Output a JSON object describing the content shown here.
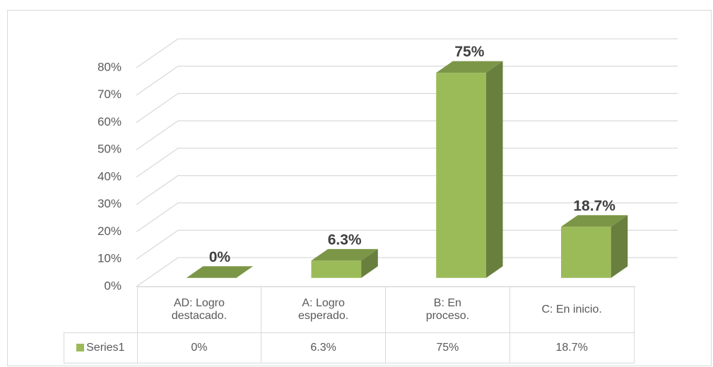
{
  "chart_data": {
    "type": "bar3d",
    "categories": [
      "AD: Logro destacado.",
      "A: Logro esperado.",
      "B: En proceso.",
      "C: En inicio."
    ],
    "series": [
      {
        "name": "Series1",
        "color": "#9bbb59",
        "values": [
          0,
          6.3,
          75,
          18.7
        ],
        "value_labels": [
          "0%",
          "6.3%",
          "75%",
          "18.7%"
        ]
      }
    ],
    "ylim": [
      0,
      80
    ],
    "yticks": [
      {
        "value": 0,
        "label": "0%"
      },
      {
        "value": 10,
        "label": "10%"
      },
      {
        "value": 20,
        "label": "20%"
      },
      {
        "value": 30,
        "label": "30%"
      },
      {
        "value": 40,
        "label": "40%"
      },
      {
        "value": 50,
        "label": "50%"
      },
      {
        "value": 60,
        "label": "60%"
      },
      {
        "value": 70,
        "label": "70%"
      },
      {
        "value": 80,
        "label": "80%"
      }
    ],
    "grid": true,
    "data_table": true
  }
}
